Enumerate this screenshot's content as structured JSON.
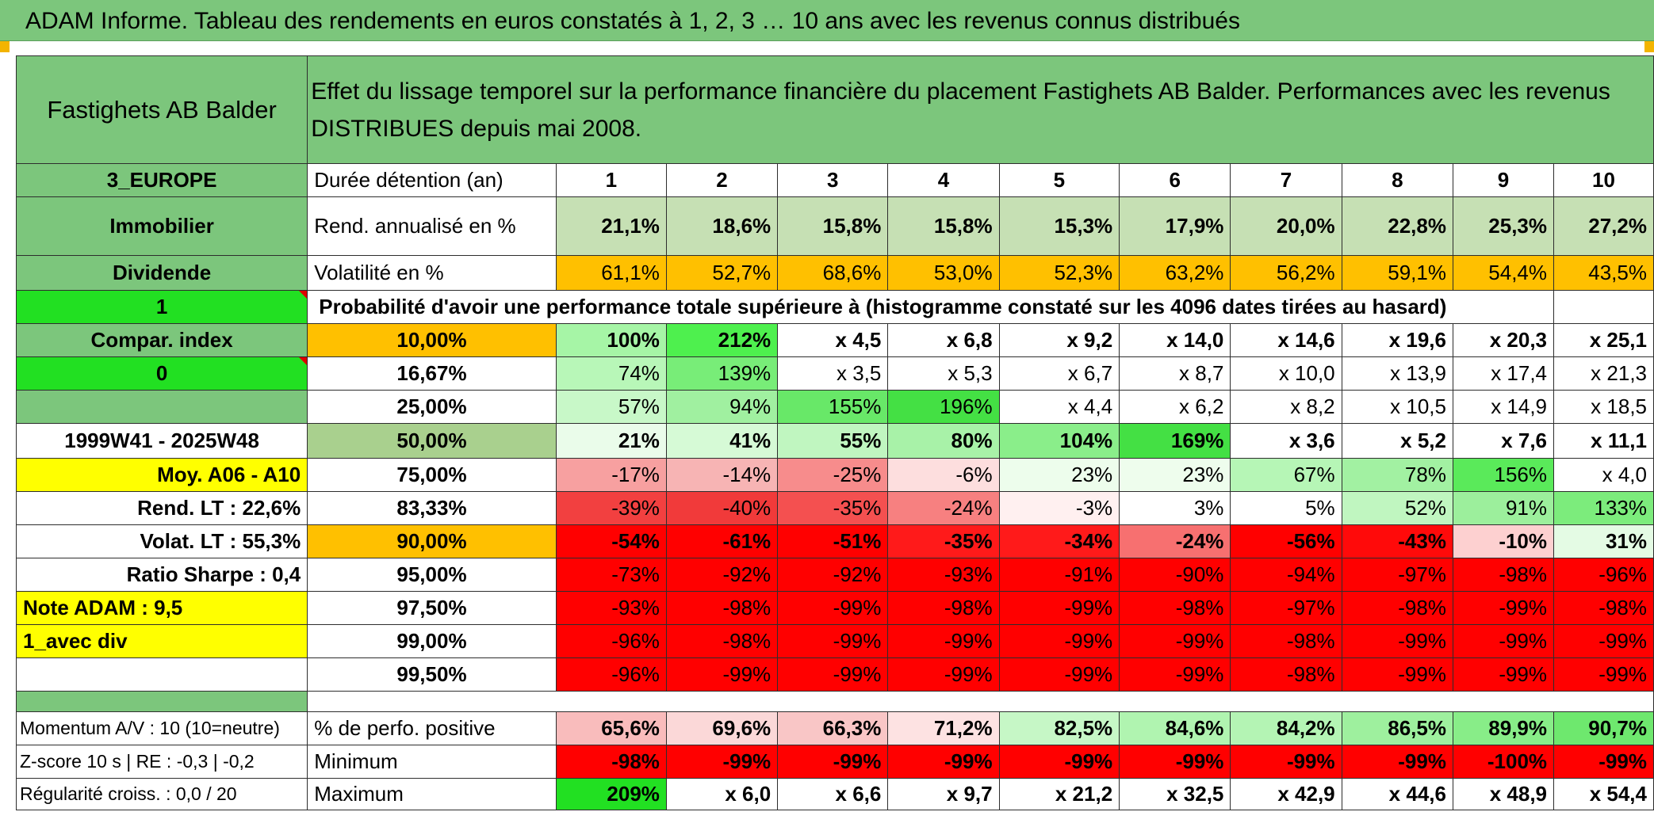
{
  "banner_title": "ADAM Informe. Tableau des rendements en euros constatés à 1, 2, 3 … 10 ans avec les revenus connus distribués",
  "header": {
    "fund_name": "Fastighets AB Balder",
    "description": "Effet du lissage temporel sur la performance financière du placement Fastighets AB Balder. Performances avec les revenus DISTRIBUES depuis mai 2008."
  },
  "left_panel": {
    "region": "3_EUROPE",
    "sector": "Immobilier",
    "income": "Dividende",
    "flag_1": "1",
    "compar_index": "Compar. index",
    "flag_0": "0",
    "blank": "",
    "period": "1999W41 - 2025W48",
    "moy": "Moy. A06 - A10",
    "rend_lt": "Rend. LT :    22,6%",
    "volat_lt": "Volat. LT :    55,3%",
    "ratio_sharpe": "Ratio Sharpe :    0,4",
    "note_adam": "Note ADAM : 9,5",
    "avec_div": "1_avec div",
    "blank2": ""
  },
  "durations_label": "Durée détention (an)",
  "durations": [
    "1",
    "2",
    "3",
    "4",
    "5",
    "6",
    "7",
    "8",
    "9",
    "10"
  ],
  "rend_label": "Rend. annualisé en %",
  "rend": [
    "21,1%",
    "18,6%",
    "15,8%",
    "15,8%",
    "15,3%",
    "17,9%",
    "20,0%",
    "22,8%",
    "25,3%",
    "27,2%"
  ],
  "vol_label": "Volatilité en %",
  "vol": [
    "61,1%",
    "52,7%",
    "68,6%",
    "53,0%",
    "52,3%",
    "63,2%",
    "56,2%",
    "59,1%",
    "54,4%",
    "43,5%"
  ],
  "probability_title": "Probabilité d'avoir une performance totale supérieure à (histogramme constaté sur les 4096 dates tirées au hasard)",
  "quantiles": [
    {
      "label": "10,00%",
      "values": [
        "100%",
        "212%",
        "x 4,5",
        "x 6,8",
        "x 9,2",
        "x 14,0",
        "x 14,6",
        "x 19,6",
        "x 20,3",
        "x 25,1"
      ]
    },
    {
      "label": "16,67%",
      "values": [
        "74%",
        "139%",
        "x 3,5",
        "x 5,3",
        "x 6,7",
        "x 8,7",
        "x 10,0",
        "x 13,9",
        "x 17,4",
        "x 21,3"
      ]
    },
    {
      "label": "25,00%",
      "values": [
        "57%",
        "94%",
        "155%",
        "196%",
        "x 4,4",
        "x 6,2",
        "x 8,2",
        "x 10,5",
        "x 14,9",
        "x 18,5"
      ]
    },
    {
      "label": "50,00%",
      "values": [
        "21%",
        "41%",
        "55%",
        "80%",
        "104%",
        "169%",
        "x 3,6",
        "x 5,2",
        "x 7,6",
        "x 11,1"
      ]
    },
    {
      "label": "75,00%",
      "values": [
        "-17%",
        "-14%",
        "-25%",
        "-6%",
        "23%",
        "23%",
        "67%",
        "78%",
        "156%",
        "x 4,0"
      ]
    },
    {
      "label": "83,33%",
      "values": [
        "-39%",
        "-40%",
        "-35%",
        "-24%",
        "-3%",
        "3%",
        "5%",
        "52%",
        "91%",
        "133%"
      ]
    },
    {
      "label": "90,00%",
      "values": [
        "-54%",
        "-61%",
        "-51%",
        "-35%",
        "-34%",
        "-24%",
        "-56%",
        "-43%",
        "-10%",
        "31%"
      ]
    },
    {
      "label": "95,00%",
      "values": [
        "-73%",
        "-92%",
        "-92%",
        "-93%",
        "-91%",
        "-90%",
        "-94%",
        "-97%",
        "-98%",
        "-96%"
      ]
    },
    {
      "label": "97,50%",
      "values": [
        "-93%",
        "-98%",
        "-99%",
        "-98%",
        "-99%",
        "-98%",
        "-97%",
        "-98%",
        "-99%",
        "-98%"
      ]
    },
    {
      "label": "99,00%",
      "values": [
        "-96%",
        "-98%",
        "-99%",
        "-99%",
        "-99%",
        "-99%",
        "-98%",
        "-99%",
        "-99%",
        "-99%"
      ]
    },
    {
      "label": "99,50%",
      "values": [
        "-96%",
        "-99%",
        "-99%",
        "-99%",
        "-99%",
        "-99%",
        "-98%",
        "-99%",
        "-99%",
        "-99%"
      ]
    }
  ],
  "bottom": {
    "momentum": "Momentum A/V : 10 (10=neutre)",
    "zscore": "Z-score 10 s | RE : -0,3 | -0,2",
    "regularite": "Régularité croiss. : 0,0 / 20",
    "pos_label": "% de perfo. positive",
    "pos": [
      "65,6%",
      "69,6%",
      "66,3%",
      "71,2%",
      "82,5%",
      "84,6%",
      "84,2%",
      "86,5%",
      "89,9%",
      "90,7%"
    ],
    "min_label": "Minimum",
    "min": [
      "-98%",
      "-99%",
      "-99%",
      "-99%",
      "-99%",
      "-99%",
      "-99%",
      "-99%",
      "-100%",
      "-99%"
    ],
    "max_label": "Maximum",
    "max": [
      "209%",
      "x 6,0",
      "x 6,6",
      "x 9,7",
      "x 21,2",
      "x 32,5",
      "x 42,9",
      "x 44,6",
      "x 48,9",
      "x 54,4"
    ]
  },
  "colors": {
    "banner_green": "#7cc67c",
    "label_green": "#7cc67c",
    "bright_green": "#22e022",
    "orange": "#ffc000",
    "yellow": "#ffff00",
    "red": "#ff0000",
    "red_text": "#d40000"
  }
}
